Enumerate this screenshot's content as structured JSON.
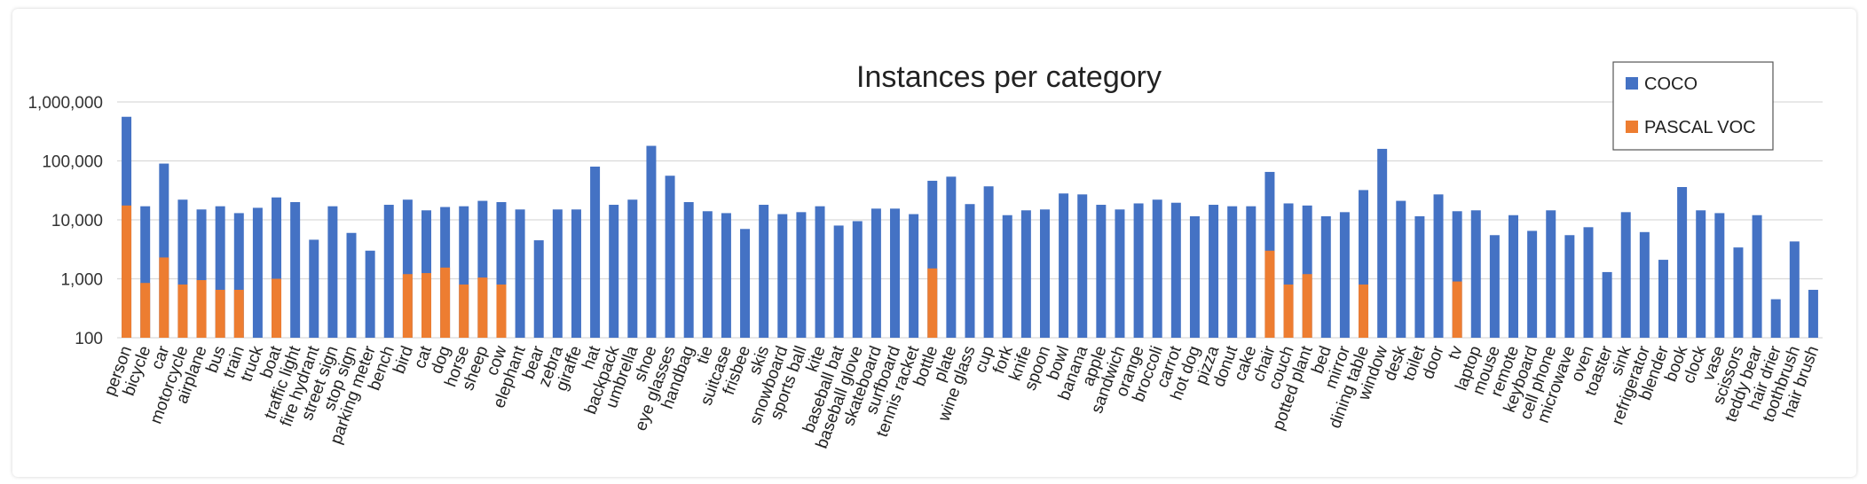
{
  "chart_data": {
    "type": "bar",
    "title": "Instances per category",
    "yscale": "log",
    "ylim": [
      100,
      1000000
    ],
    "yticks": [
      "100",
      "1,000",
      "10,000",
      "100,000",
      "1,000,000"
    ],
    "grid": true,
    "legend_position": "top-right",
    "categories": [
      "person",
      "bicycle",
      "car",
      "motorcycle",
      "airplane",
      "bus",
      "train",
      "truck",
      "boat",
      "traffic light",
      "fire hydrant",
      "street sign",
      "stop sign",
      "parking meter",
      "bench",
      "bird",
      "cat",
      "dog",
      "horse",
      "sheep",
      "cow",
      "elephant",
      "bear",
      "zebra",
      "giraffe",
      "hat",
      "backpack",
      "umbrella",
      "shoe",
      "eye glasses",
      "handbag",
      "tie",
      "suitcase",
      "frisbee",
      "skis",
      "snowboard",
      "sports ball",
      "kite",
      "baseball bat",
      "baseball glove",
      "skateboard",
      "surfboard",
      "tennis racket",
      "bottle",
      "plate",
      "wine glass",
      "cup",
      "fork",
      "knife",
      "spoon",
      "bowl",
      "banana",
      "apple",
      "sandwich",
      "orange",
      "broccoli",
      "carrot",
      "hot dog",
      "pizza",
      "donut",
      "cake",
      "chair",
      "couch",
      "potted plant",
      "bed",
      "mirror",
      "dining table",
      "window",
      "desk",
      "toilet",
      "door",
      "tv",
      "laptop",
      "mouse",
      "remote",
      "keyboard",
      "cell phone",
      "microwave",
      "oven",
      "toaster",
      "sink",
      "refrigerator",
      "blender",
      "book",
      "clock",
      "vase",
      "scissors",
      "teddy bear",
      "hair drier",
      "toothbrush",
      "hair brush"
    ],
    "series": [
      {
        "name": "COCO",
        "color": "#4472C4",
        "values": [
          560000,
          17000,
          90000,
          22000,
          15000,
          17000,
          13000,
          16000,
          24000,
          20000,
          4600,
          17000,
          6000,
          3000,
          18000,
          22000,
          14500,
          16500,
          17000,
          21000,
          20000,
          15000,
          4500,
          15000,
          15000,
          80000,
          18000,
          22000,
          180000,
          56000,
          20000,
          14000,
          13000,
          7000,
          18000,
          12500,
          13500,
          17000,
          8000,
          9500,
          15500,
          15500,
          12500,
          46000,
          54000,
          18500,
          37000,
          12000,
          14500,
          15000,
          28000,
          27000,
          18000,
          15000,
          19000,
          22000,
          19500,
          11500,
          18000,
          17000,
          17000,
          65000,
          19000,
          17500,
          11500,
          13500,
          32000,
          160000,
          21000,
          11500,
          27000,
          14000,
          14500,
          5500,
          12000,
          6500,
          14500,
          5500,
          7500,
          1300,
          13500,
          6200,
          2100,
          36000,
          14500,
          13000,
          3400,
          12000,
          450,
          4300,
          650
        ]
      },
      {
        "name": "PASCAL VOC",
        "color": "#ED7D31",
        "values": [
          17500,
          850,
          2300,
          800,
          950,
          650,
          650,
          null,
          1000,
          null,
          null,
          null,
          null,
          null,
          null,
          1200,
          1250,
          1550,
          800,
          1050,
          800,
          null,
          null,
          null,
          null,
          null,
          null,
          null,
          null,
          null,
          null,
          null,
          null,
          null,
          null,
          null,
          null,
          null,
          null,
          null,
          null,
          null,
          null,
          1500,
          null,
          null,
          null,
          null,
          null,
          null,
          null,
          null,
          null,
          null,
          null,
          null,
          null,
          null,
          null,
          null,
          null,
          3000,
          800,
          1200,
          null,
          null,
          800,
          null,
          null,
          null,
          null,
          900,
          null,
          null,
          null,
          null,
          null,
          null,
          null,
          null,
          null,
          null,
          null,
          null,
          null,
          null,
          null,
          null,
          null,
          null,
          null
        ]
      }
    ]
  }
}
